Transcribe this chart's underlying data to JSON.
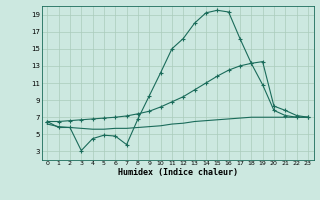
{
  "xlabel": "Humidex (Indice chaleur)",
  "bg_color": "#cce8e0",
  "grid_color": "#aaccbb",
  "line_color": "#1a6b5a",
  "xlim": [
    -0.5,
    23.5
  ],
  "ylim": [
    2.0,
    20.0
  ],
  "yticks": [
    3,
    5,
    7,
    9,
    11,
    13,
    15,
    17,
    19
  ],
  "xticks": [
    0,
    1,
    2,
    3,
    4,
    5,
    6,
    7,
    8,
    9,
    10,
    11,
    12,
    13,
    14,
    15,
    16,
    17,
    18,
    19,
    20,
    21,
    22,
    23
  ],
  "line1_x": [
    0,
    1,
    2,
    3,
    4,
    5,
    6,
    7,
    8,
    9,
    10,
    11,
    12,
    13,
    14,
    15,
    16,
    17,
    18,
    19,
    20,
    21,
    22,
    23
  ],
  "line1_y": [
    6.5,
    5.8,
    5.8,
    3.1,
    4.5,
    4.9,
    4.8,
    3.8,
    6.8,
    9.5,
    12.2,
    15.0,
    16.2,
    18.0,
    19.2,
    19.5,
    19.3,
    16.2,
    13.3,
    10.8,
    7.8,
    7.2,
    7.0,
    7.0
  ],
  "line2_x": [
    0,
    1,
    2,
    3,
    4,
    5,
    6,
    7,
    8,
    9,
    10,
    11,
    12,
    13,
    14,
    15,
    16,
    17,
    18,
    19,
    20,
    21,
    22,
    23
  ],
  "line2_y": [
    6.5,
    6.5,
    6.6,
    6.7,
    6.8,
    6.9,
    7.0,
    7.15,
    7.4,
    7.7,
    8.2,
    8.8,
    9.4,
    10.2,
    11.0,
    11.8,
    12.5,
    13.0,
    13.3,
    13.5,
    8.3,
    7.8,
    7.2,
    7.0
  ],
  "line3_x": [
    0,
    1,
    2,
    3,
    4,
    5,
    6,
    7,
    8,
    9,
    10,
    11,
    12,
    13,
    14,
    15,
    16,
    17,
    18,
    19,
    20,
    21,
    22,
    23
  ],
  "line3_y": [
    6.2,
    5.9,
    5.8,
    5.7,
    5.6,
    5.6,
    5.7,
    5.7,
    5.8,
    5.9,
    6.0,
    6.2,
    6.3,
    6.5,
    6.6,
    6.7,
    6.8,
    6.9,
    7.0,
    7.0,
    7.0,
    7.0,
    7.0,
    7.0
  ]
}
